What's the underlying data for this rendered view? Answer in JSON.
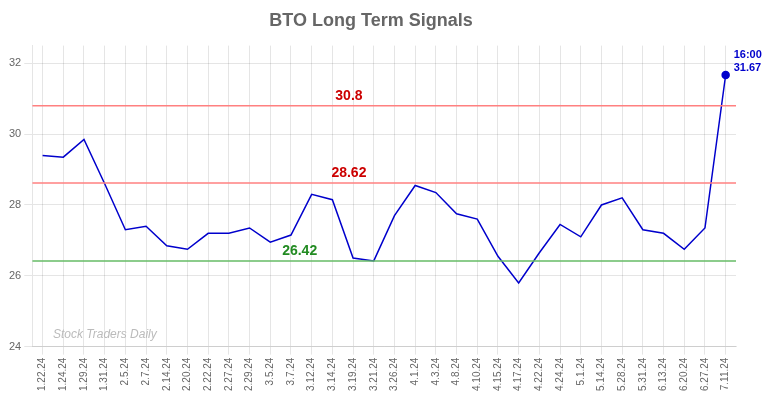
{
  "chart_data": {
    "type": "line",
    "title": "BTO Long Term Signals",
    "categories": [
      "1.22.24",
      "1.24.24",
      "1.29.24",
      "1.31.24",
      "2.5.24",
      "2.7.24",
      "2.14.24",
      "2.20.24",
      "2.22.24",
      "2.27.24",
      "2.29.24",
      "3.5.24",
      "3.7.24",
      "3.12.24",
      "3.14.24",
      "3.19.24",
      "3.21.24",
      "3.26.24",
      "4.1.24",
      "4.3.24",
      "4.8.24",
      "4.10.24",
      "4.15.24",
      "4.17.24",
      "4.22.24",
      "4.24.24",
      "5.1.24",
      "5.14.24",
      "5.28.24",
      "5.31.24",
      "6.13.24",
      "6.20.24",
      "6.27.24",
      "7.11.24"
    ],
    "values": [
      29.4,
      29.35,
      29.85,
      28.6,
      27.3,
      27.4,
      26.85,
      26.75,
      27.2,
      27.2,
      27.35,
      26.95,
      27.15,
      28.3,
      28.15,
      26.5,
      26.42,
      27.7,
      28.55,
      28.35,
      27.75,
      27.6,
      26.55,
      25.8,
      26.65,
      27.45,
      27.1,
      28.0,
      28.2,
      27.3,
      27.2,
      26.75,
      27.35,
      31.67
    ],
    "color": "#0000cc",
    "ylim": [
      24,
      32.5
    ],
    "yticks": [
      24,
      26,
      28,
      30,
      32
    ],
    "grid": true,
    "reference_lines": [
      {
        "value": 30.8,
        "label": "30.8",
        "color": "#ff8080",
        "label_color": "#cc0000"
      },
      {
        "value": 28.62,
        "label": "28.62",
        "color": "#ff8080",
        "label_color": "#cc0000"
      },
      {
        "value": 26.42,
        "label": "26.42",
        "color": "#66bb66",
        "label_color": "#228B22"
      }
    ],
    "last_point_label": [
      "16:00",
      "31.67"
    ],
    "watermark": {
      "text": "Stock Traders Daily",
      "color": "#bbbbbb"
    }
  }
}
